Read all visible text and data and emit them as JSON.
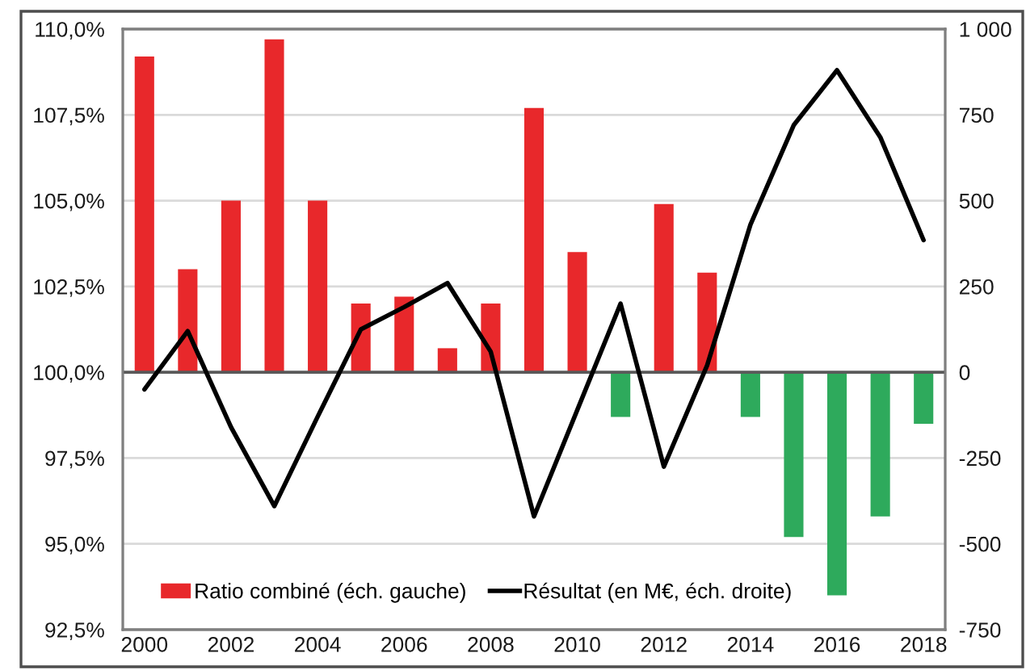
{
  "chart_data": {
    "type": "bar",
    "categories": [
      "2000",
      null,
      "2002",
      null,
      "2004",
      null,
      "2006",
      null,
      "2008",
      null,
      "2010",
      null,
      "2012",
      null,
      "2014",
      null,
      "2016",
      null,
      "2018"
    ],
    "series": [
      {
        "name": "Ratio combiné (éch. gauche)",
        "color": "#e8282b",
        "base": [
          100,
          100,
          100,
          100,
          100,
          100,
          100,
          100,
          100,
          100,
          100,
          100,
          100,
          100,
          100,
          100,
          100,
          100,
          100
        ],
        "values": [
          9.2,
          3.0,
          5.0,
          9.7,
          5.0,
          2.0,
          2.2,
          0.7,
          2.0,
          7.7,
          3.5,
          -1.3,
          4.9,
          2.9,
          -1.3,
          -4.8,
          -6.5,
          -4.2,
          -1.5
        ],
        "colors": [
          "#e8282b",
          "#e8282b",
          "#e8282b",
          "#e8282b",
          "#e8282b",
          "#e8282b",
          "#e8282b",
          "#e8282b",
          "#e8282b",
          "#e8282b",
          "#e8282b",
          "#2eaa5c",
          "#e8282b",
          "#e8282b",
          "#2eaa5c",
          "#2eaa5c",
          "#2eaa5c",
          "#2eaa5c",
          "#2eaa5c"
        ]
      },
      {
        "type": "line",
        "axis": "y2",
        "name": "Résultat (en M€, éch. droite)",
        "color": "#000000",
        "values": [
          -50,
          120,
          -160,
          -390,
          -130,
          125,
          190,
          260,
          60,
          -420,
          -110,
          200,
          -275,
          20,
          430,
          720,
          880,
          685,
          385
        ]
      }
    ],
    "ylim": [
      92.5,
      110
    ],
    "yticks": [
      {
        "value": 92.5,
        "label": "92,5%"
      },
      {
        "value": 95,
        "label": "95,0%"
      },
      {
        "value": 97.5,
        "label": "97,5%"
      },
      {
        "value": 100,
        "label": "100,0%"
      },
      {
        "value": 102.5,
        "label": "102,5%"
      },
      {
        "value": 105,
        "label": "105,0%"
      },
      {
        "value": 107.5,
        "label": "107,5%"
      },
      {
        "value": 110,
        "label": "110,0%"
      }
    ],
    "y2lim": [
      -750,
      1000
    ],
    "y2ticks": [
      -750,
      -500,
      -250,
      0,
      250,
      500,
      750,
      {
        "value": 1000,
        "label": "1 000"
      }
    ],
    "ref_lines": [
      {
        "axis": "y",
        "value": 100,
        "color": "#595959"
      }
    ],
    "grid": "y",
    "legend": "bottom"
  }
}
